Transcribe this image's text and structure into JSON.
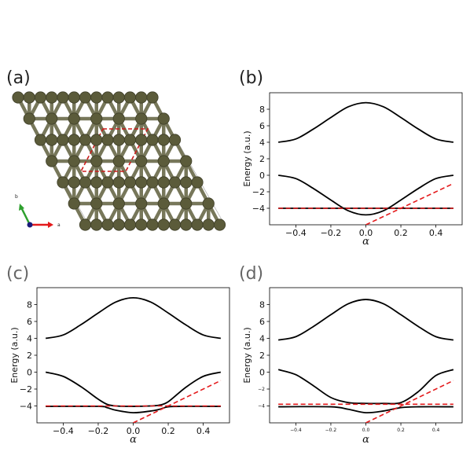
{
  "panels": {
    "a": {
      "label": "(a)",
      "axis_a": "a",
      "axis_b": "b"
    },
    "b": {
      "label": "(b)"
    },
    "c": {
      "label": "(c)"
    },
    "d": {
      "label": "(d)"
    }
  },
  "colors": {
    "band": "#000000",
    "dashed": "#e41a1c",
    "atom": "#5b5b3a",
    "bond": "#77775a",
    "cell": "#cc1a1a",
    "frame": "#aaaaaa",
    "axis_a": "#e41a1c",
    "axis_b": "#2ea02e",
    "origin": "#1a1a7a"
  },
  "chart_data": [
    {
      "panel": "b",
      "type": "line",
      "title": "",
      "xlabel": "α",
      "ylabel": "Energy (a.u.)",
      "xlim": [
        -0.55,
        0.55
      ],
      "ylim": [
        -6,
        10
      ],
      "xticks": [
        -0.4,
        -0.2,
        0.0,
        0.2,
        0.4
      ],
      "xtick_labels": [
        "−0.4",
        "−0.2",
        "0.0",
        "0.2",
        "0.4"
      ],
      "yticks": [
        -4,
        -2,
        0,
        2,
        4,
        6,
        8
      ],
      "ytick_labels": [
        "−4",
        "−2",
        "0",
        "2",
        "4",
        "6",
        "8"
      ],
      "grid": false,
      "series": [
        {
          "style": "solid",
          "color": "#000000",
          "x": [
            -0.5,
            -0.4,
            -0.3,
            -0.2,
            -0.1,
            0.0,
            0.1,
            0.2,
            0.3,
            0.4,
            0.5
          ],
          "y": [
            4.0,
            4.4,
            5.6,
            7.0,
            8.3,
            8.8,
            8.3,
            7.0,
            5.6,
            4.4,
            4.0
          ]
        },
        {
          "style": "solid",
          "color": "#000000",
          "x": [
            -0.5,
            -0.4,
            -0.3,
            -0.2,
            -0.1,
            0.0,
            0.1,
            0.2,
            0.3,
            0.4,
            0.5
          ],
          "y": [
            0.0,
            -0.4,
            -1.6,
            -3.0,
            -4.3,
            -4.8,
            -4.3,
            -3.0,
            -1.6,
            -0.4,
            0.0
          ]
        },
        {
          "style": "solid",
          "color": "#000000",
          "x": [
            -0.5,
            0.5
          ],
          "y": [
            -4.0,
            -4.0
          ]
        },
        {
          "style": "dashed",
          "color": "#e41a1c",
          "x": [
            -0.5,
            0.5
          ],
          "y": [
            -4.0,
            -4.0
          ]
        },
        {
          "style": "dashed",
          "color": "#e41a1c",
          "x": [
            0.0,
            0.5
          ],
          "y": [
            -6.0,
            -1.0
          ]
        }
      ]
    },
    {
      "panel": "c",
      "type": "line",
      "title": "",
      "xlabel": "α",
      "ylabel": "Energy (a.u.)",
      "xlim": [
        -0.55,
        0.55
      ],
      "ylim": [
        -6,
        10
      ],
      "xticks": [
        -0.4,
        -0.2,
        0.0,
        0.2,
        0.4
      ],
      "xtick_labels": [
        "−0.4",
        "−0.2",
        "0.0",
        "0.2",
        "0.4"
      ],
      "yticks": [
        -4,
        -2,
        0,
        2,
        4,
        6,
        8
      ],
      "ytick_labels": [
        "−4",
        "−2",
        "0",
        "2",
        "4",
        "6",
        "8"
      ],
      "grid": false,
      "series": [
        {
          "style": "solid",
          "color": "#000000",
          "x": [
            -0.5,
            -0.4,
            -0.3,
            -0.2,
            -0.1,
            0.0,
            0.1,
            0.2,
            0.3,
            0.4,
            0.5
          ],
          "y": [
            4.0,
            4.4,
            5.6,
            7.0,
            8.3,
            8.8,
            8.3,
            7.0,
            5.6,
            4.4,
            4.0
          ]
        },
        {
          "style": "solid",
          "color": "#000000",
          "x": [
            -0.5,
            -0.4,
            -0.3,
            -0.2,
            -0.15,
            -0.1,
            0.0,
            0.1,
            0.15,
            0.2,
            0.3,
            0.4,
            0.5
          ],
          "y": [
            0.0,
            -0.5,
            -1.7,
            -3.2,
            -3.8,
            -4.0,
            -4.05,
            -4.0,
            -3.9,
            -3.5,
            -1.8,
            -0.5,
            0.0
          ]
        },
        {
          "style": "solid",
          "color": "#000000",
          "x": [
            -0.5,
            -0.2,
            -0.15,
            -0.1,
            0.0,
            0.1,
            0.15,
            0.2,
            0.3,
            0.5
          ],
          "y": [
            -4.05,
            -4.05,
            -4.2,
            -4.5,
            -4.8,
            -4.6,
            -4.4,
            -4.1,
            -4.05,
            -4.05
          ]
        },
        {
          "style": "dashed",
          "color": "#e41a1c",
          "x": [
            -0.5,
            0.5
          ],
          "y": [
            -4.0,
            -4.0
          ]
        },
        {
          "style": "dashed",
          "color": "#e41a1c",
          "x": [
            0.0,
            0.5
          ],
          "y": [
            -6.0,
            -1.0
          ]
        }
      ]
    },
    {
      "panel": "d",
      "type": "line",
      "title": "",
      "xlabel": "α",
      "ylabel": "Energy (a.u.)",
      "xlim": [
        -0.55,
        0.55
      ],
      "ylim": [
        -6,
        10
      ],
      "xticks": [
        -0.4,
        -0.2,
        0.0,
        0.2,
        0.4
      ],
      "xtick_labels": [
        "−0.4",
        "−0.2",
        "0.0",
        "0.2",
        "0.4"
      ],
      "yticks": [
        -4,
        -2,
        0,
        2,
        4,
        6,
        8
      ],
      "ytick_labels": [
        "−4",
        "−2",
        "0",
        "2",
        "4",
        "6",
        "8"
      ],
      "small_xticks": true,
      "small_yticks": [
        -4,
        -2
      ],
      "grid": false,
      "series": [
        {
          "style": "solid",
          "color": "#000000",
          "x": [
            -0.5,
            -0.4,
            -0.3,
            -0.2,
            -0.1,
            0.0,
            0.1,
            0.2,
            0.3,
            0.4,
            0.5
          ],
          "y": [
            3.8,
            4.2,
            5.4,
            6.8,
            8.1,
            8.6,
            8.1,
            6.8,
            5.4,
            4.2,
            3.8
          ]
        },
        {
          "style": "solid",
          "color": "#000000",
          "x": [
            -0.5,
            -0.4,
            -0.3,
            -0.2,
            -0.1,
            0.0,
            0.1,
            0.2,
            0.3,
            0.4,
            0.5
          ],
          "y": [
            0.3,
            -0.3,
            -1.6,
            -3.0,
            -3.6,
            -3.7,
            -3.7,
            -3.6,
            -2.3,
            -0.4,
            0.3
          ]
        },
        {
          "style": "solid",
          "color": "#000000",
          "x": [
            -0.5,
            -0.2,
            -0.1,
            0.0,
            0.1,
            0.2,
            0.3,
            0.5
          ],
          "y": [
            -4.1,
            -4.1,
            -4.4,
            -4.8,
            -4.6,
            -4.2,
            -4.1,
            -4.1
          ]
        },
        {
          "style": "dashed",
          "color": "#e41a1c",
          "x": [
            -0.5,
            0.5
          ],
          "y": [
            -3.8,
            -3.8
          ]
        },
        {
          "style": "dashed",
          "color": "#e41a1c",
          "x": [
            0.0,
            0.5
          ],
          "y": [
            -6.0,
            -1.0
          ]
        }
      ]
    }
  ]
}
